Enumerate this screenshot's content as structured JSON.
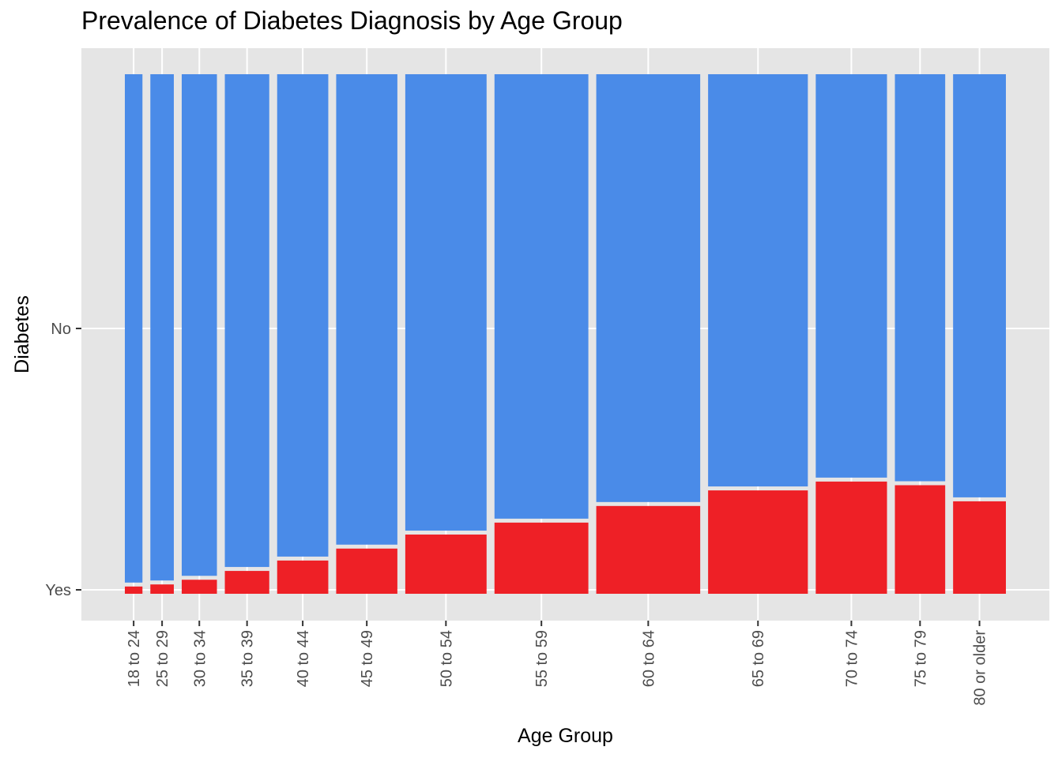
{
  "chart_data": {
    "type": "bar",
    "subtype": "mosaic",
    "title": "Prevalence of Diabetes Diagnosis by Age Group",
    "xlabel": "Age Group",
    "ylabel": "Diabetes",
    "categories": [
      "18 to 24",
      "25 to 29",
      "30 to 34",
      "35 to 39",
      "40 to 44",
      "45 to 49",
      "50 to 54",
      "55 to 59",
      "60 to 64",
      "65 to 69",
      "70 to 74",
      "75 to 79",
      "80 or older"
    ],
    "category_share": [
      0.021,
      0.028,
      0.042,
      0.053,
      0.061,
      0.073,
      0.097,
      0.112,
      0.124,
      0.119,
      0.085,
      0.06,
      0.063
    ],
    "series": [
      {
        "name": "Yes",
        "color": "#ee2026",
        "values": [
          0.017,
          0.021,
          0.03,
          0.047,
          0.067,
          0.09,
          0.117,
          0.14,
          0.172,
          0.202,
          0.219,
          0.212,
          0.181
        ]
      },
      {
        "name": "No",
        "color": "#4a8be8",
        "values": [
          0.983,
          0.979,
          0.97,
          0.953,
          0.933,
          0.91,
          0.883,
          0.86,
          0.828,
          0.798,
          0.781,
          0.788,
          0.819
        ]
      }
    ],
    "y_ticks": [
      "Yes",
      "No"
    ],
    "ylim": [
      0,
      1
    ],
    "grid": true,
    "panel_background": "#e5e5e5",
    "grid_color": "#ffffff"
  }
}
